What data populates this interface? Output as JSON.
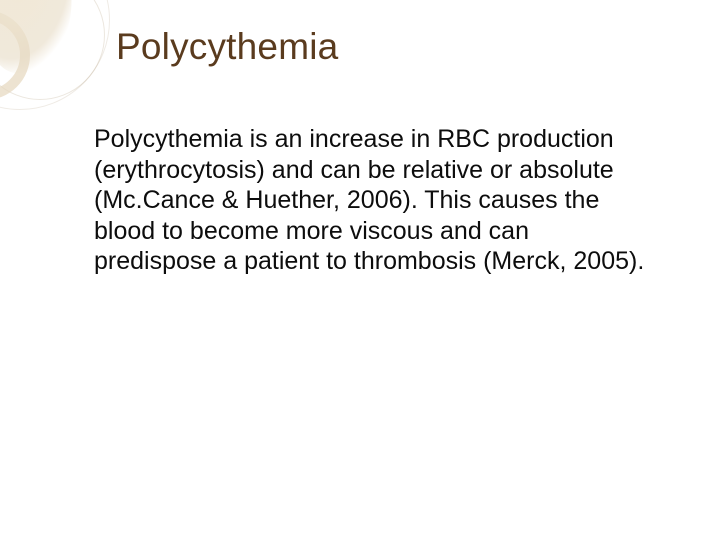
{
  "slide": {
    "title": "Polycythemia",
    "body": "Polycythemia is an increase in RBC production (erythrocytosis) and can be relative or absolute (Mc.Cance & Huether, 2006). This  causes the blood to become more viscous and can predispose a patient to thrombosis (Merck, 2005)."
  },
  "style": {
    "title_color": "#5a3b1e",
    "title_fontsize": 37,
    "body_color": "#0d0d0d",
    "body_fontsize": 25,
    "background_color": "#ffffff",
    "decoration_tint": "#e8dcc4"
  }
}
